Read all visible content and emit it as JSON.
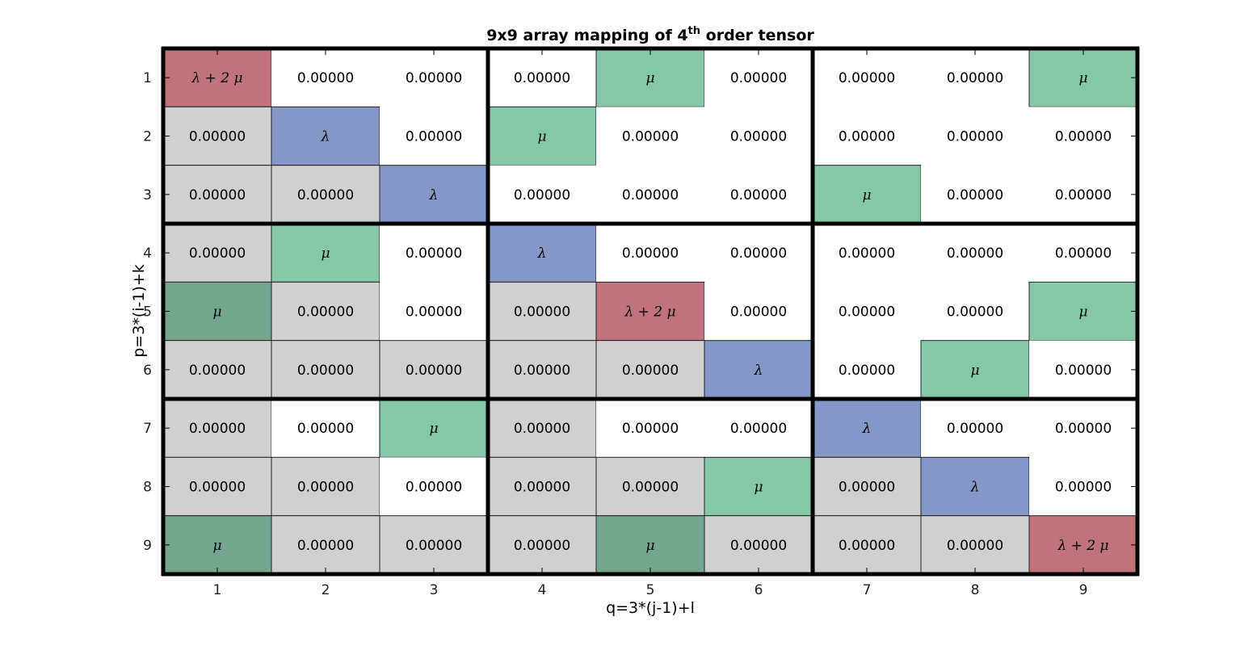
{
  "chart_data": {
    "type": "heatmap",
    "title": "9x9 array mapping of 4",
    "title_superscript": "th",
    "title_suffix": " order tensor",
    "xlabel": "q=3*(j-1)+l",
    "ylabel": "p=3*(i-1)+k",
    "x_ticks": [
      "1",
      "2",
      "3",
      "4",
      "5",
      "6",
      "7",
      "8",
      "9"
    ],
    "y_ticks": [
      "1",
      "2",
      "3",
      "4",
      "5",
      "6",
      "7",
      "8",
      "9"
    ],
    "block_size": 3,
    "legend": "none",
    "colors": {
      "lambda_plus_2mu": "#c0737a",
      "lambda": "#8497c7",
      "mu": "#86c6a9",
      "mu_lower": "#74a58f",
      "lower_zero": "#d0d0d0",
      "upper_zero": "#ffffff"
    },
    "cells": [
      [
        "λ + 2 μ",
        "0.00000",
        "0.00000",
        "0.00000",
        "μ",
        "0.00000",
        "0.00000",
        "0.00000",
        "μ"
      ],
      [
        "0.00000",
        "λ",
        "0.00000",
        "μ",
        "0.00000",
        "0.00000",
        "0.00000",
        "0.00000",
        "0.00000"
      ],
      [
        "0.00000",
        "0.00000",
        "λ",
        "0.00000",
        "0.00000",
        "0.00000",
        "μ",
        "0.00000",
        "0.00000"
      ],
      [
        "0.00000",
        "μ",
        "0.00000",
        "λ",
        "0.00000",
        "0.00000",
        "0.00000",
        "0.00000",
        "0.00000"
      ],
      [
        "μ",
        "0.00000",
        "0.00000",
        "0.00000",
        "λ + 2 μ",
        "0.00000",
        "0.00000",
        "0.00000",
        "μ"
      ],
      [
        "0.00000",
        "0.00000",
        "0.00000",
        "0.00000",
        "0.00000",
        "λ",
        "0.00000",
        "μ",
        "0.00000"
      ],
      [
        "0.00000",
        "0.00000",
        "μ",
        "0.00000",
        "0.00000",
        "0.00000",
        "λ",
        "0.00000",
        "0.00000"
      ],
      [
        "0.00000",
        "0.00000",
        "0.00000",
        "0.00000",
        "0.00000",
        "μ",
        "0.00000",
        "λ",
        "0.00000"
      ],
      [
        "μ",
        "0.00000",
        "0.00000",
        "0.00000",
        "μ",
        "0.00000",
        "0.00000",
        "0.00000",
        "λ + 2 μ"
      ]
    ],
    "cell_kinds": [
      [
        "l2m",
        "zu",
        "zu",
        "zu",
        "mu",
        "zu",
        "zu",
        "zu",
        "mu"
      ],
      [
        "zl",
        "lam",
        "zu",
        "mu",
        "zu",
        "zu",
        "zu",
        "zu",
        "zu"
      ],
      [
        "zl",
        "zl",
        "lam",
        "zu",
        "zu",
        "zu",
        "mu",
        "zu",
        "zu"
      ],
      [
        "zl",
        "mu",
        "zu",
        "lam",
        "zu",
        "zu",
        "zu",
        "zu",
        "zu"
      ],
      [
        "mul",
        "zl",
        "zu",
        "zl",
        "l2m",
        "zu",
        "zu",
        "zu",
        "mu"
      ],
      [
        "zl",
        "zl",
        "zl",
        "zl",
        "zl",
        "lam",
        "zu",
        "mu",
        "zu"
      ],
      [
        "zl",
        "zu",
        "mu",
        "zl",
        "zu",
        "zu",
        "lam",
        "zu",
        "zu"
      ],
      [
        "zl",
        "zl",
        "zu",
        "zl",
        "zl",
        "mu",
        "zl",
        "lam",
        "zu"
      ],
      [
        "mul",
        "zl",
        "zl",
        "zl",
        "mul",
        "zl",
        "zl",
        "zl",
        "l2m"
      ]
    ]
  }
}
